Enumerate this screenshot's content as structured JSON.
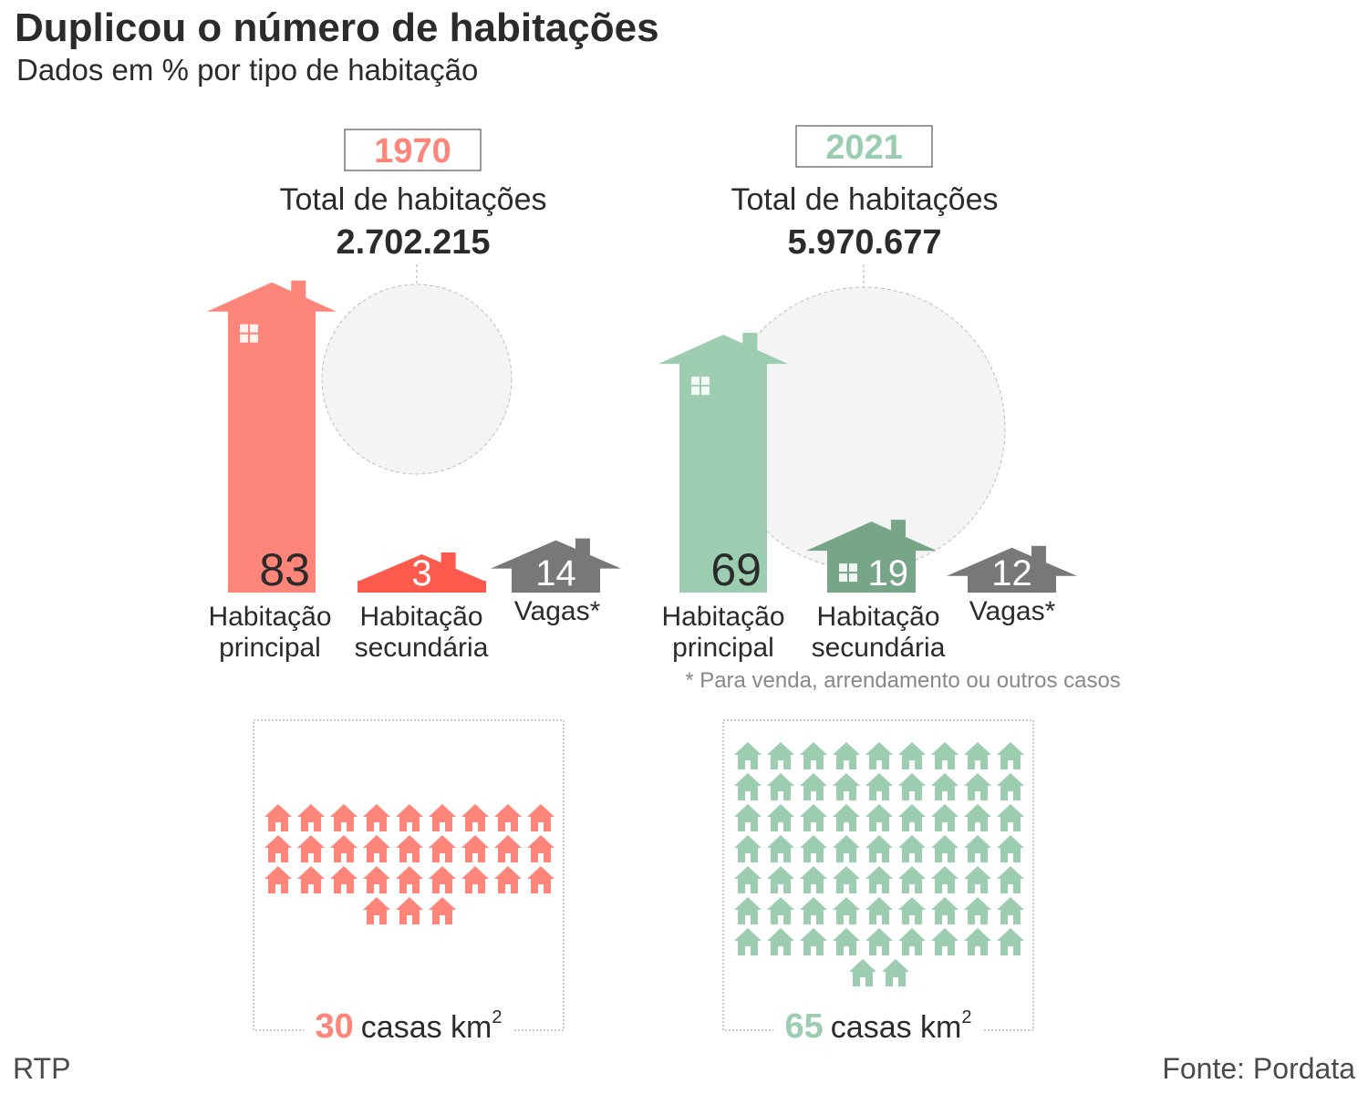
{
  "header": {
    "title": "Duplicou o número de habitações",
    "subtitle": "Dados em % por tipo de habitação"
  },
  "footer": {
    "credit": "RTP",
    "source": "Fonte: Pordata"
  },
  "footnote": "* Para venda, arrendamento ou outros casos",
  "colors": {
    "y1970": "#fe8579",
    "y1970_secondary": "#fc5a4d",
    "y2021": "#9ccdb0",
    "y2021_secondary": "#77a587",
    "vacant": "#787878",
    "text": "#2b2b2b",
    "circle_fill": "#f4f4f4",
    "circle_stroke": "#bdbdbd"
  },
  "chart_data": [
    {
      "type": "bar",
      "year": "1970",
      "total_label": "Total de habitações",
      "total": "2.702.215",
      "categories": [
        "Habitação principal",
        "Habitação secundária",
        "Vagas*"
      ],
      "values": [
        83,
        3,
        14
      ],
      "value_labels": [
        "83",
        "3",
        "14"
      ],
      "density": {
        "value": "30",
        "unit": "casas km",
        "sup": "2"
      }
    },
    {
      "type": "bar",
      "year": "2021",
      "total_label": "Total de habitações",
      "total": "5.970.677",
      "categories": [
        "Habitação principal",
        "Habitação secundária",
        "Vagas*"
      ],
      "values": [
        69,
        19,
        12
      ],
      "value_labels": [
        "69",
        "19",
        "12"
      ],
      "density": {
        "value": "65",
        "unit": "casas km",
        "sup": "2"
      }
    }
  ]
}
